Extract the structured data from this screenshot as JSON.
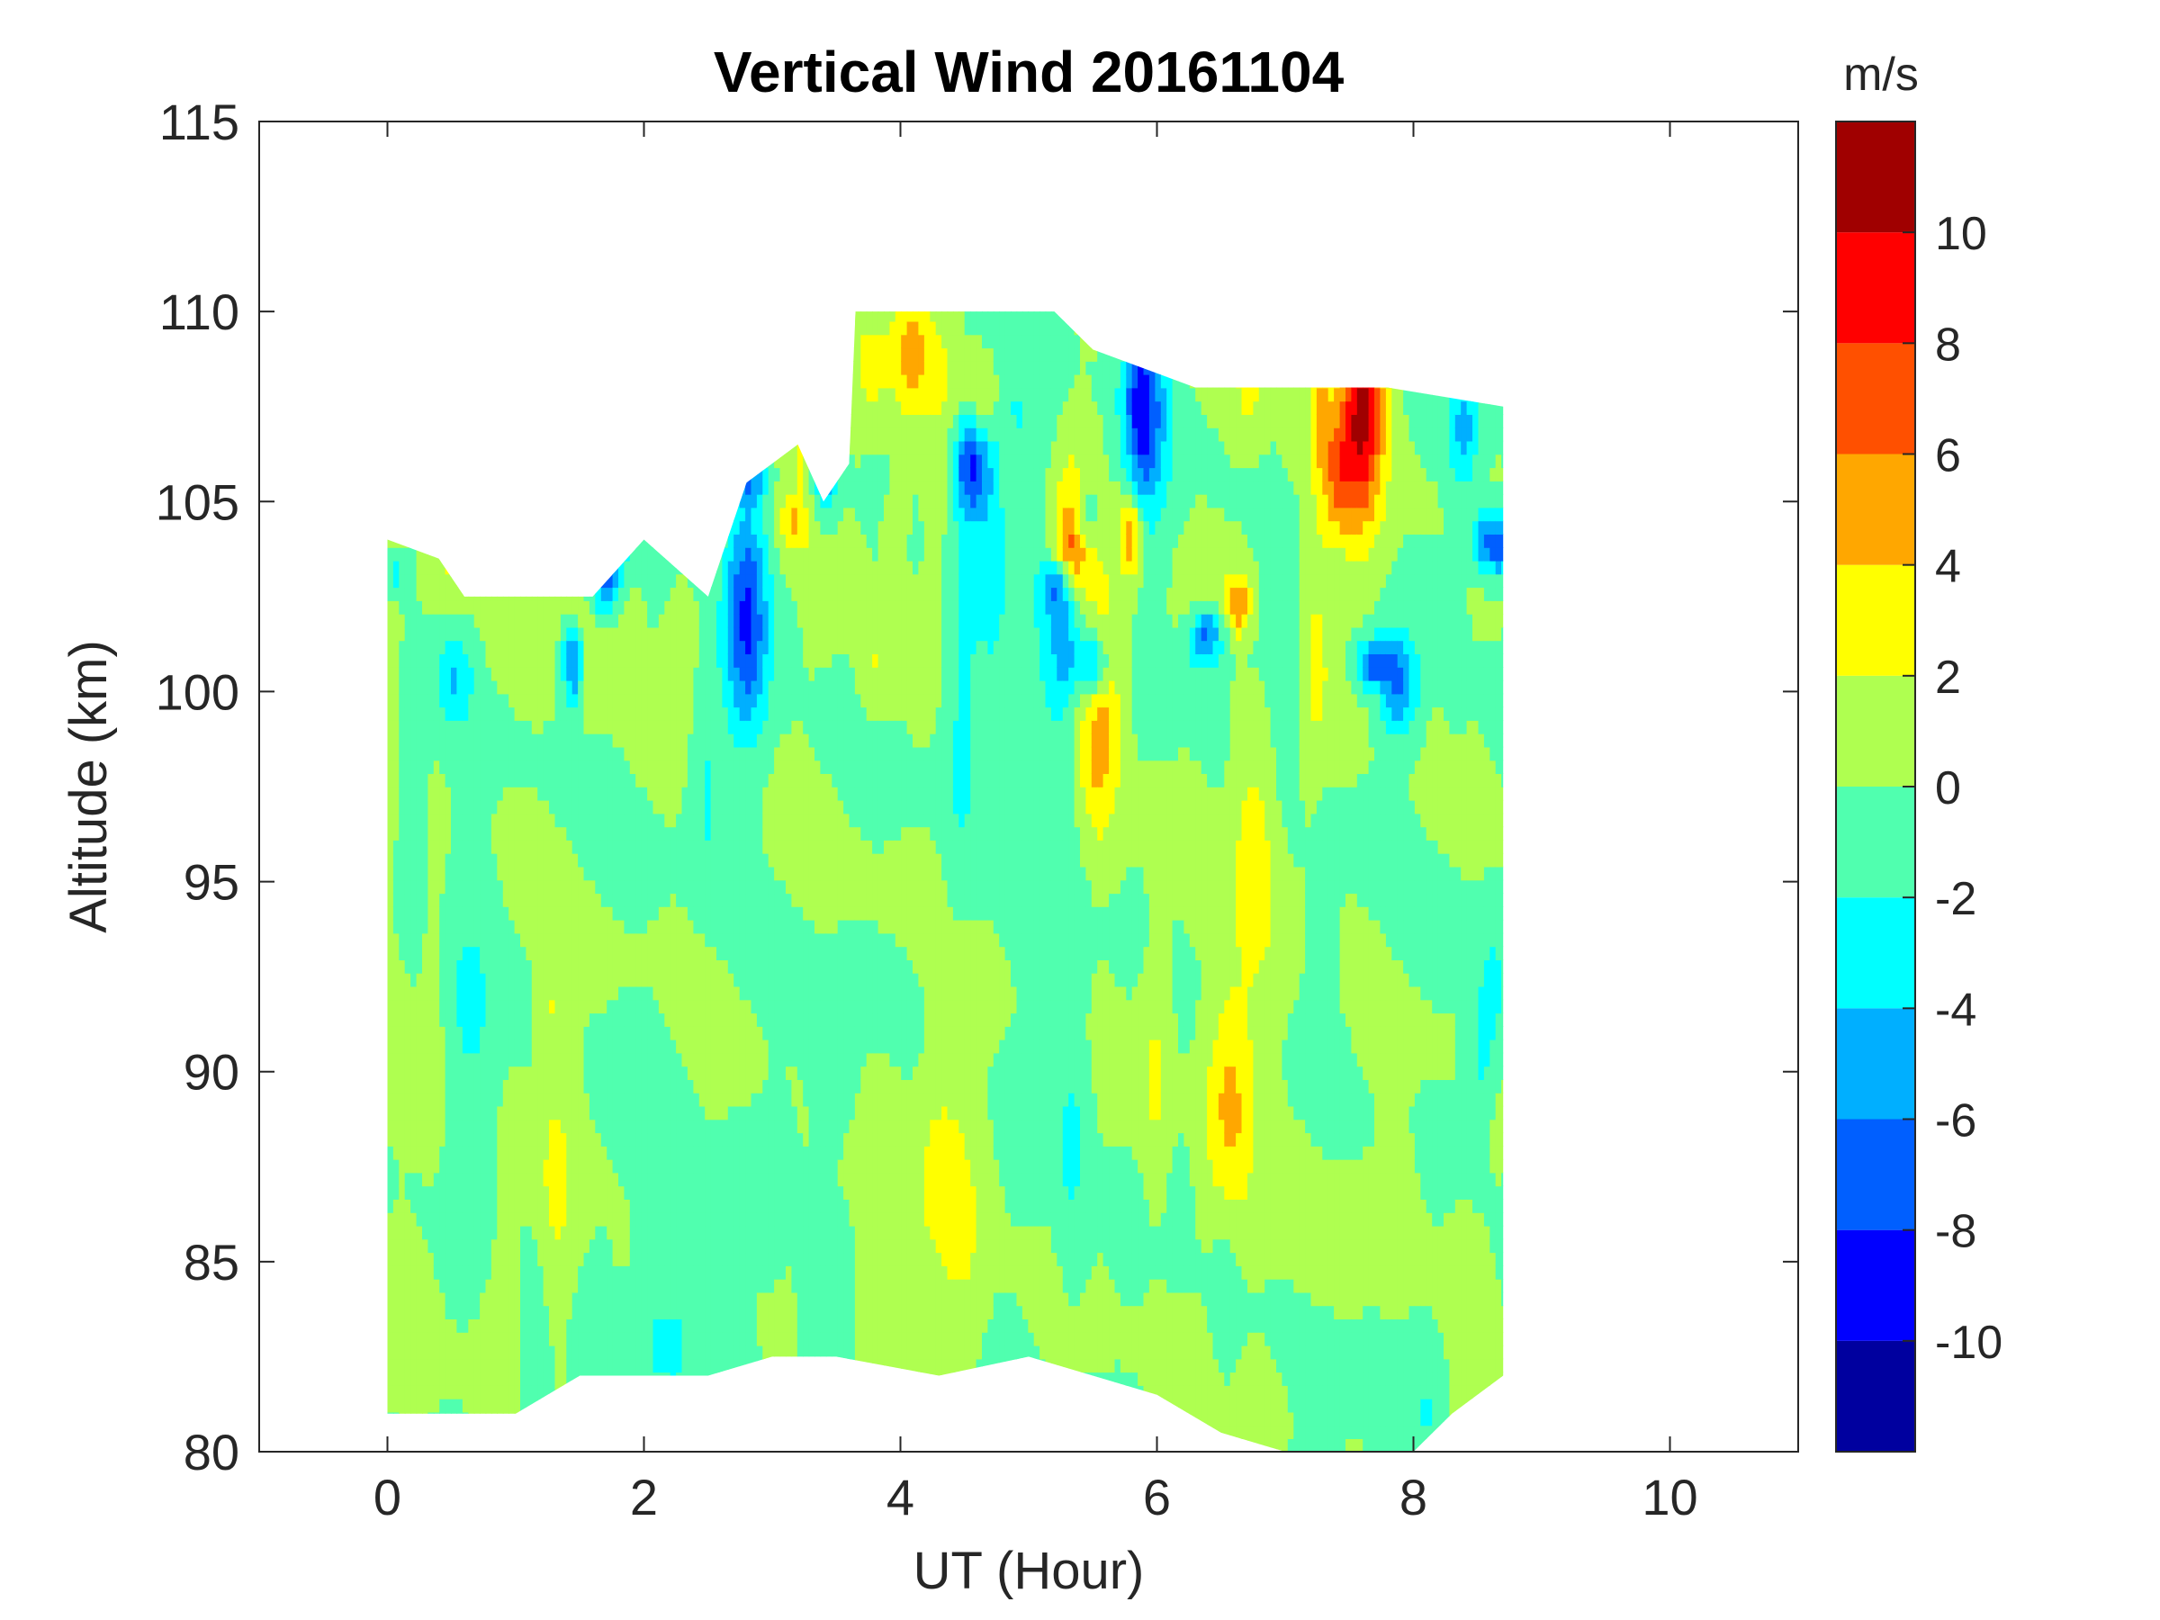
{
  "chart_data": {
    "type": "contour",
    "title": "Vertical Wind 20161104",
    "xlabel": "UT (Hour)",
    "ylabel": "Altitude (km)",
    "xlim": [
      -1,
      11
    ],
    "ylim": [
      80,
      115
    ],
    "x_ticks": [
      0,
      2,
      4,
      6,
      8,
      10
    ],
    "y_ticks": [
      80,
      85,
      90,
      95,
      100,
      105,
      110,
      115
    ],
    "x_tick_labels": [
      "0",
      "2",
      "4",
      "6",
      "8",
      "10"
    ],
    "y_tick_labels": [
      "80",
      "85",
      "90",
      "95",
      "100",
      "105",
      "110",
      "115"
    ],
    "data_x_range": [
      0,
      8.7
    ],
    "data_top_boundary": [
      [
        0,
        104
      ],
      [
        0.4,
        103.5
      ],
      [
        0.6,
        102.5
      ],
      [
        1.2,
        102.5
      ],
      [
        1.6,
        102.5
      ],
      [
        2.0,
        104
      ],
      [
        2.5,
        102.5
      ],
      [
        2.8,
        105.5
      ],
      [
        3.2,
        106.5
      ],
      [
        3.4,
        105
      ],
      [
        3.6,
        106
      ],
      [
        3.65,
        110
      ],
      [
        5.2,
        110
      ],
      [
        5.5,
        109
      ],
      [
        6.3,
        108
      ],
      [
        6.8,
        108
      ],
      [
        7.1,
        108
      ],
      [
        7.8,
        108
      ],
      [
        8.7,
        107.5
      ]
    ],
    "data_bottom_boundary": [
      [
        0,
        81
      ],
      [
        1.0,
        81
      ],
      [
        1.5,
        82
      ],
      [
        2.5,
        82
      ],
      [
        3.0,
        82.5
      ],
      [
        3.5,
        82.5
      ],
      [
        4.3,
        82
      ],
      [
        5.0,
        82.5
      ],
      [
        5.5,
        82
      ],
      [
        6.0,
        81.5
      ],
      [
        6.5,
        80.5
      ],
      [
        7.0,
        80
      ],
      [
        8.0,
        80
      ],
      [
        8.3,
        81
      ],
      [
        8.7,
        82
      ]
    ],
    "colorbar": {
      "label": "m/s",
      "range": [
        -12,
        12
      ],
      "levels": [
        -12,
        -10,
        -8,
        -6,
        -4,
        -2,
        0,
        2,
        4,
        6,
        8,
        10,
        12
      ],
      "tick_values": [
        -10,
        -8,
        -6,
        -4,
        -2,
        0,
        2,
        4,
        6,
        8,
        10
      ],
      "tick_labels": [
        "-10",
        "-8",
        "-6",
        "-4",
        "-2",
        "0",
        "2",
        "4",
        "6",
        "8",
        "10"
      ],
      "colors": [
        "#00009F",
        "#0000FF",
        "#005FFF",
        "#00AFFF",
        "#00FFFF",
        "#50FFAF",
        "#AFFF50",
        "#FFFF00",
        "#FFA700",
        "#FF5000",
        "#FF0000",
        "#A00000"
      ]
    },
    "features": [
      {
        "type": "updraft",
        "x": 6.75,
        "y": 96.5,
        "value": 3
      },
      {
        "type": "updraft",
        "x": 5.3,
        "y": 103.5,
        "value": 5
      },
      {
        "type": "updraft",
        "x": 6.55,
        "y": 89.0,
        "value": 5
      },
      {
        "type": "updraft",
        "x": 5.55,
        "y": 99.5,
        "value": 5
      },
      {
        "type": "downdraft",
        "x": 2.8,
        "y": 102.0,
        "value": -8
      },
      {
        "type": "downdraft",
        "x": 5.9,
        "y": 107.5,
        "value": -8
      },
      {
        "type": "strong_updraft",
        "x": 7.6,
        "y": 107.5,
        "value": 10
      }
    ]
  }
}
